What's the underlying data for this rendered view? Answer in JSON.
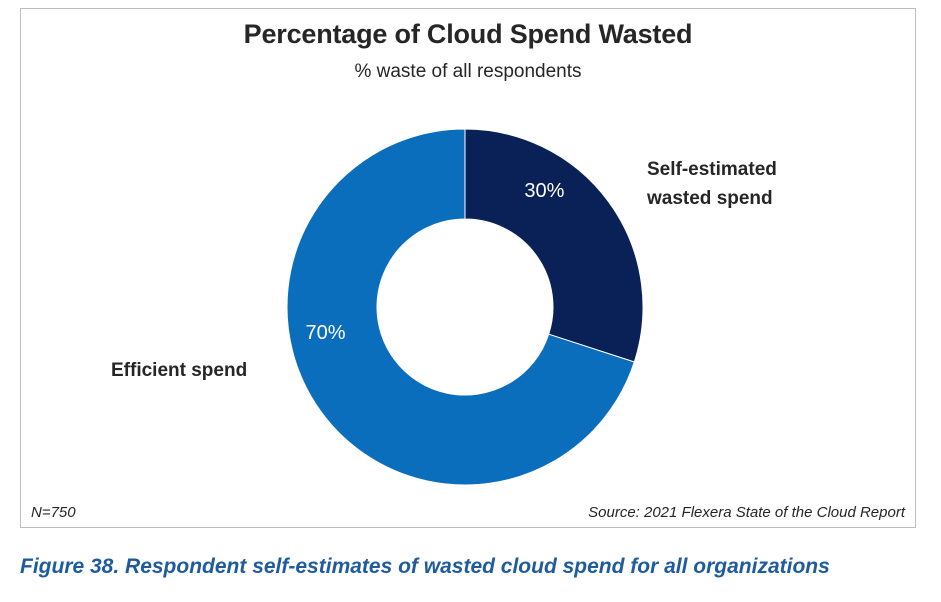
{
  "chart_data": {
    "type": "pie",
    "title": "Percentage of Cloud Spend Wasted",
    "subtitle": "% waste of all respondents",
    "categories": [
      "Self-estimated wasted spend",
      "Efficient spend"
    ],
    "values": [
      30,
      70
    ],
    "value_labels": [
      "30%",
      "70%"
    ],
    "colors": [
      "#0a2158",
      "#0b6ebd"
    ],
    "hole": "donut",
    "label_color": "#ffffff"
  },
  "labels": {
    "wasted_line1": "Self-estimated",
    "wasted_line2": "wasted spend",
    "efficient": "Efficient spend"
  },
  "footer": {
    "sample_size": "N=750",
    "source": "Source: 2021 Flexera State of the Cloud Report"
  },
  "caption": "Figure 38. Respondent self-estimates of wasted cloud spend for all organizations"
}
